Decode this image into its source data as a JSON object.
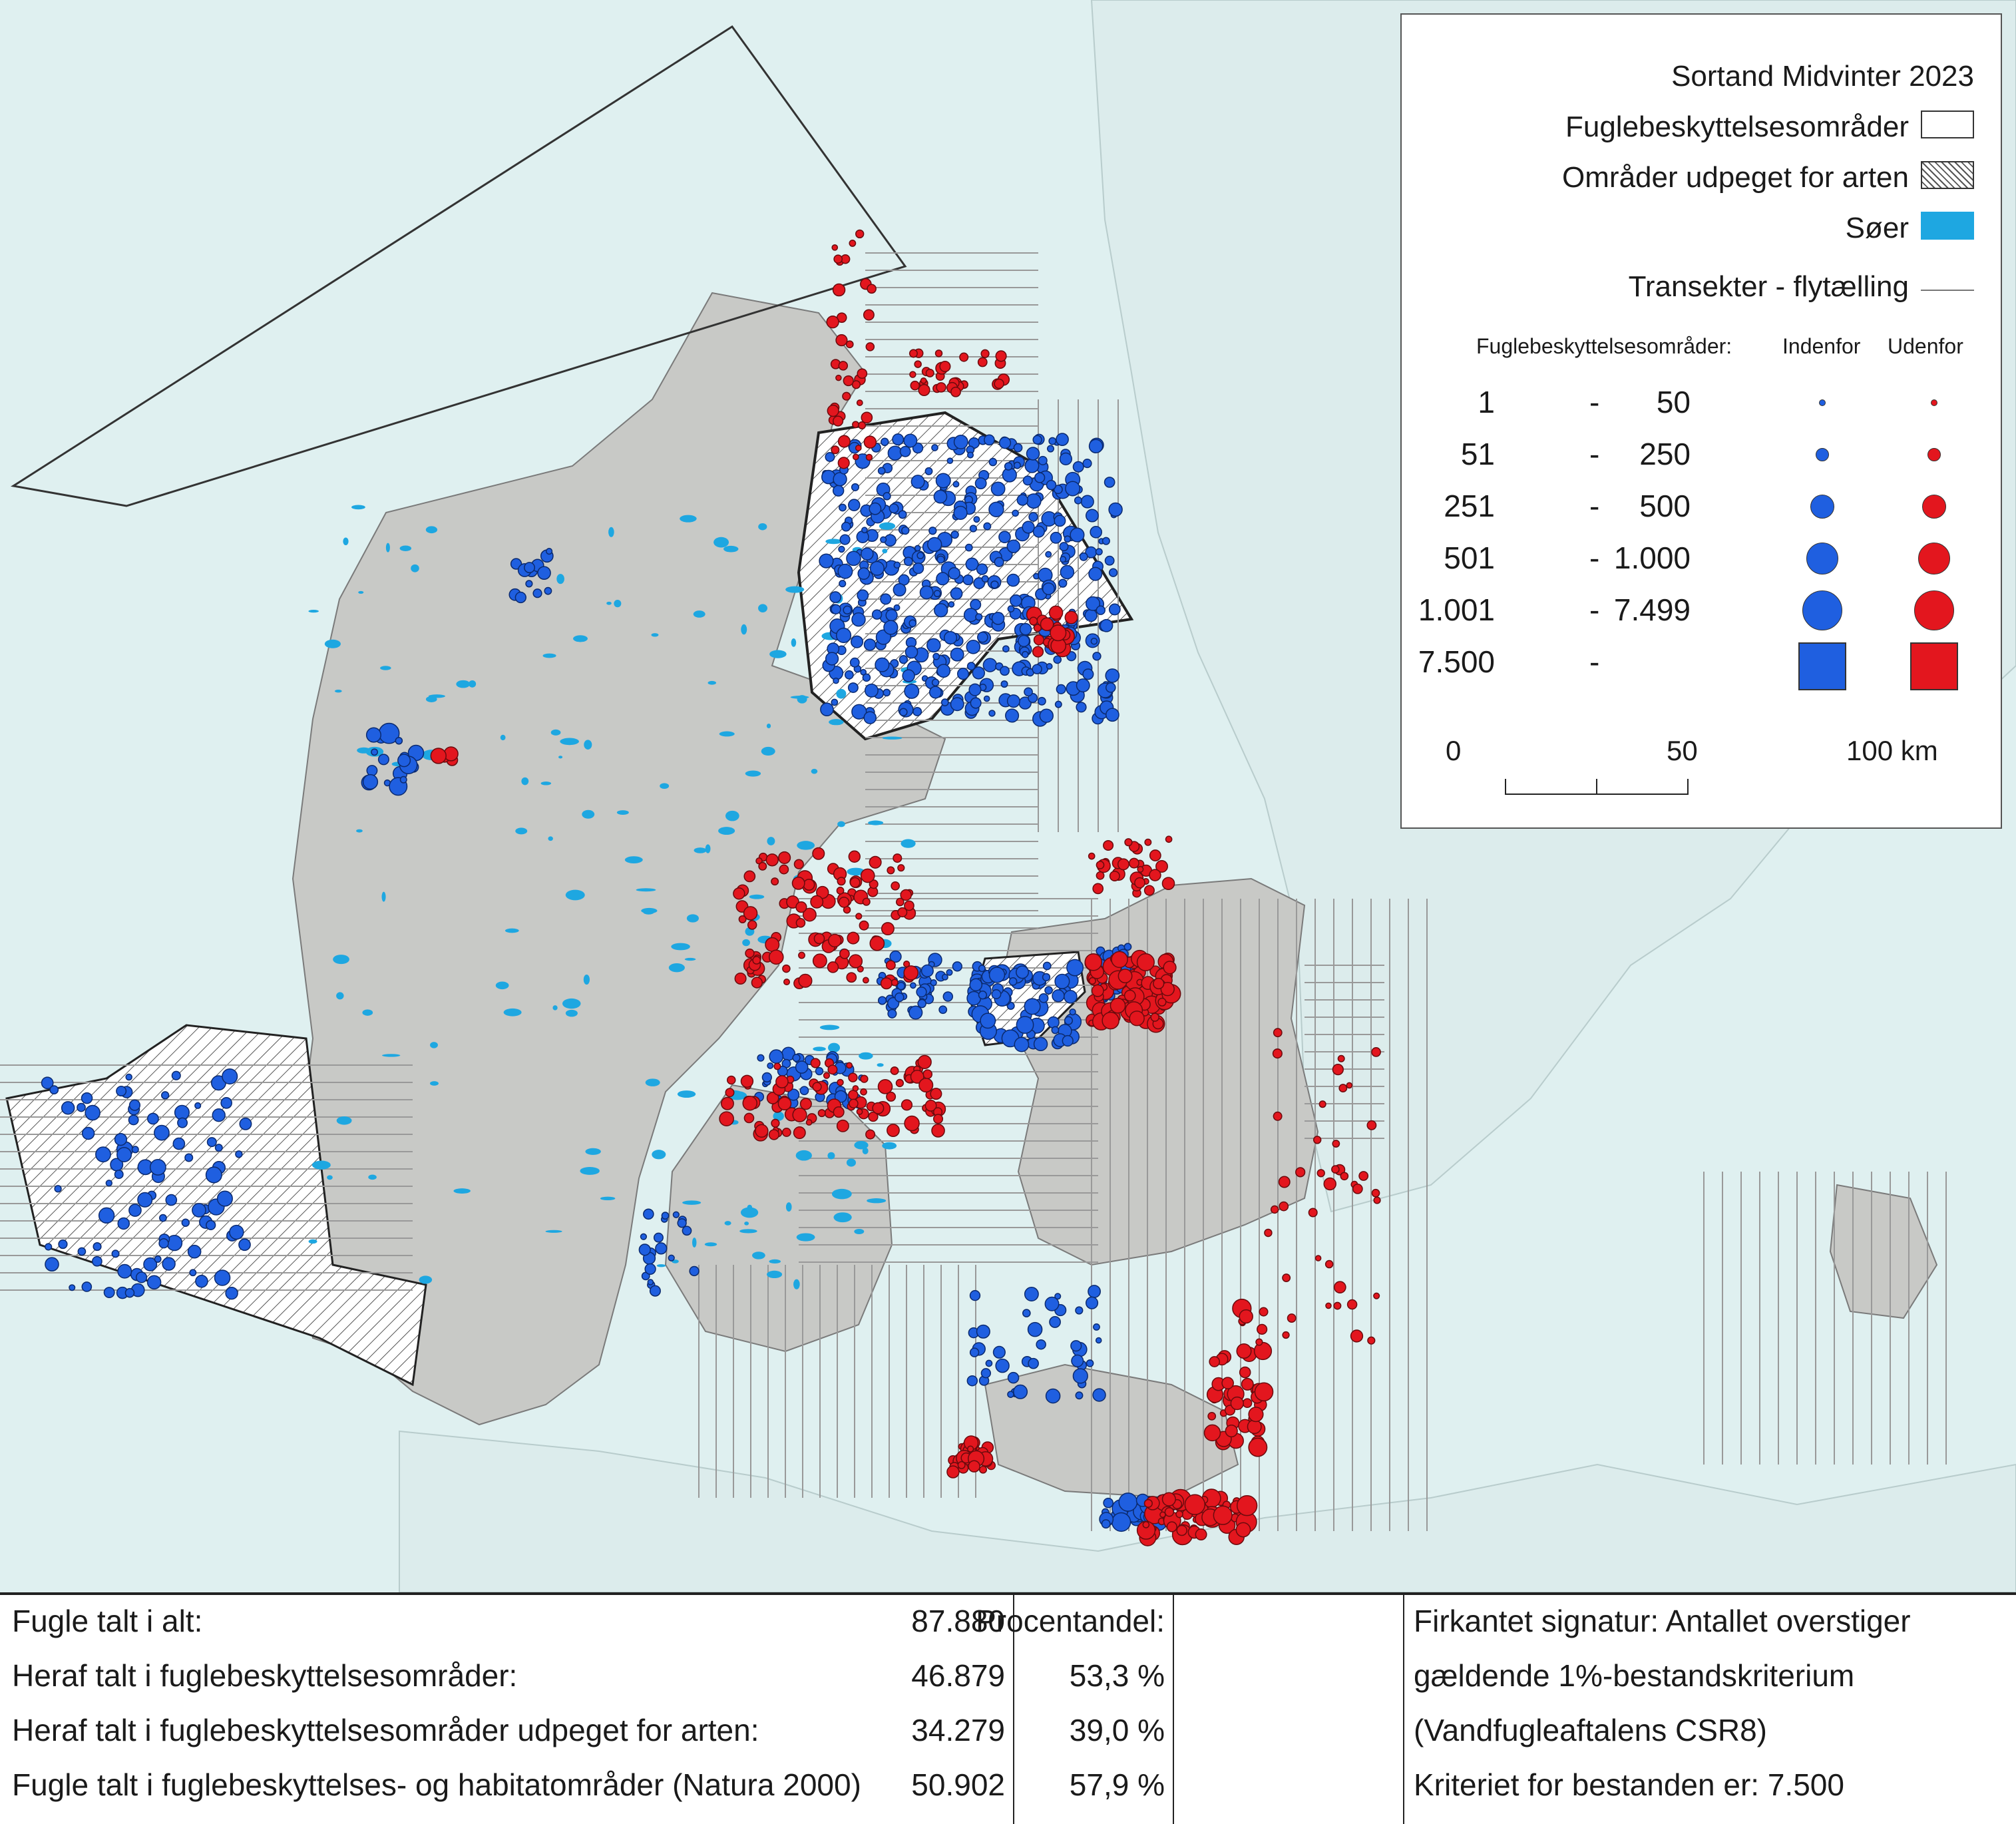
{
  "legend": {
    "title": "Sortand Midvinter 2023",
    "items": [
      {
        "label": "Fuglebeskyttelsesområder",
        "swatch": "white"
      },
      {
        "label": "Områder udpeget for arten",
        "swatch": "hatched"
      },
      {
        "label": "Søer",
        "swatch": "#1ea7e1"
      },
      {
        "label": "Transekter - flytælling",
        "swatch": "line"
      }
    ],
    "size_header": {
      "label": "Fuglebeskyttelsesområder:",
      "inside": "Indenfor",
      "outside": "Udenfor"
    },
    "size_classes": [
      {
        "min": "1",
        "max": "50"
      },
      {
        "min": "51",
        "max": "250"
      },
      {
        "min": "251",
        "max": "500"
      },
      {
        "min": "501",
        "max": "1.000"
      },
      {
        "min": "1.001",
        "max": "7.499"
      },
      {
        "min": "7.500",
        "max": ""
      }
    ],
    "dash": "-",
    "scale": {
      "labels": [
        "0",
        "50",
        "100 km"
      ]
    }
  },
  "colors": {
    "sea": "#dff0f0",
    "land": "#c8c9c6",
    "lakes": "#1ea7e1",
    "inside": "#1f5fe0",
    "outside": "#e3161e",
    "spa": "#ffffff"
  },
  "stats": {
    "rows": [
      {
        "label": "Fugle talt i alt:",
        "value": "87.880",
        "pct": "Procentandel:",
        "note": "Firkantet signatur: Antallet overstiger"
      },
      {
        "label": "Heraf talt i fuglebeskyttelsesområder:",
        "value": "46.879",
        "pct": "53,3 %",
        "note": "gældende 1%-bestandskriterium"
      },
      {
        "label": "Heraf talt i fuglebeskyttelsesområder udpeget for arten:",
        "value": "34.279",
        "pct": "39,0 %",
        "note": "(Vandfugleaftalens CSR8)"
      },
      {
        "label": "Fugle talt i fuglebeskyttelses- og habitatområder (Natura 2000)",
        "value": "50.902",
        "pct": "57,9 %",
        "note": "Kriteriet for bestanden er: 7.500"
      }
    ]
  }
}
